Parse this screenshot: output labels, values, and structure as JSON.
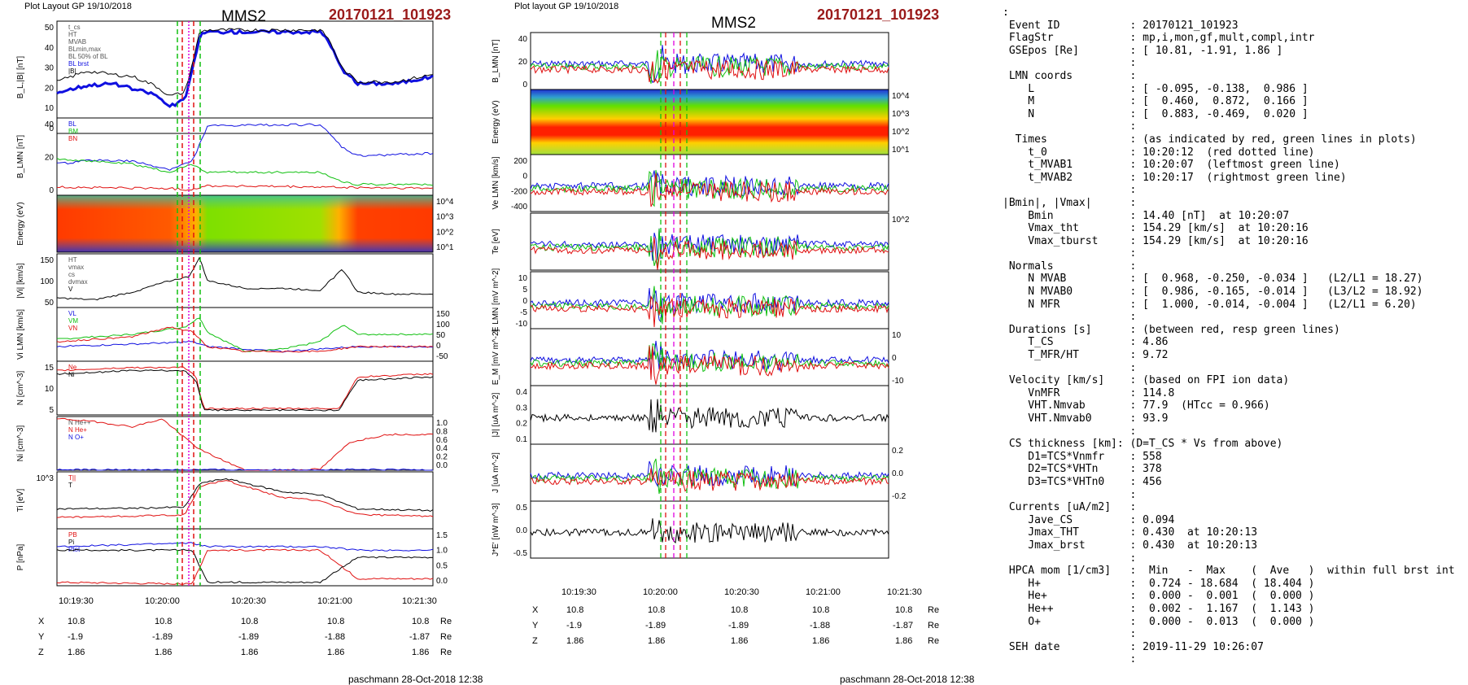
{
  "panel_left": {
    "header": "Plot Layout GP 19/10/2018",
    "spacecraft": "MMS2",
    "event": "20170121_101923",
    "footer": "paschmann 28-Oct-2018 12:38",
    "time_ticks": [
      "10:19:30",
      "10:20:00",
      "10:20:30",
      "10:21:00",
      "10:21:30"
    ],
    "positions": {
      "X": {
        "label": "X",
        "values": [
          "10.8",
          "10.8",
          "10.8",
          "10.8",
          "10.8"
        ],
        "unit": "Re"
      },
      "Y": {
        "label": "Y",
        "values": [
          "-1.9",
          "-1.89",
          "-1.89",
          "-1.88",
          "-1.87"
        ],
        "unit": "Re"
      },
      "Z": {
        "label": "Z",
        "values": [
          "1.86",
          "1.86",
          "1.86",
          "1.86",
          "1.86"
        ],
        "unit": "Re"
      }
    }
  },
  "panel_mid": {
    "header": "Plot layout GP 19/10/2018",
    "spacecraft": "MMS2",
    "event": "20170121_101923",
    "footer": "paschmann 28-Oct-2018 12:38",
    "time_ticks": [
      "10:19:30",
      "10:20:00",
      "10:20:30",
      "10:21:00",
      "10:21:30"
    ],
    "positions": {
      "X": {
        "label": "X",
        "values": [
          "10.8",
          "10.8",
          "10.8",
          "10.8",
          "10.8"
        ],
        "unit": "Re"
      },
      "Y": {
        "label": "Y",
        "values": [
          "-1.9",
          "-1.89",
          "-1.89",
          "-1.88",
          "-1.87"
        ],
        "unit": "Re"
      },
      "Z": {
        "label": "Z",
        "values": [
          "1.86",
          "1.86",
          "1.86",
          "1.86",
          "1.86"
        ],
        "unit": "Re"
      }
    }
  },
  "colors": {
    "red": "#e01010",
    "green": "#10c010",
    "blue": "#1010e0",
    "black": "#000000",
    "magenta": "#e000e0",
    "darkred": "#9a1a1a"
  },
  "text_lines": [
    ":",
    " Event ID           : 20170121_101923",
    " FlagStr            : mp,i,mon,gf,mult,compl,intr",
    " GSEpos [Re]        : [ 10.81, -1.91, 1.86 ]",
    "                    :",
    " LMN coords         :",
    "    L               : [ -0.095, -0.138,  0.986 ]",
    "    M               : [  0.460,  0.872,  0.166 ]",
    "    N               : [  0.883, -0.469,  0.020 ]",
    "                    :",
    "  Times             : (as indicated by red, green lines in plots)",
    "    t_0             : 10:20:12  (red dotted line)",
    "    t_MVAB1         : 10:20:07  (leftmost green line)",
    "    t_MVAB2         : 10:20:17  (rightmost green line)",
    "                    :",
    "|Bmin|, |Vmax|      :",
    "    Bmin            : 14.40 [nT]  at 10:20:07",
    "    Vmax_tht        : 154.29 [km/s]  at 10:20:16",
    "    Vmax_tburst     : 154.29 [km/s]  at 10:20:16",
    "                    :",
    " Normals            :",
    "    N MVAB          : [  0.968, -0.250, -0.034 ]   (L2/L1 = 18.27)",
    "    N MVAB0         : [  0.986, -0.165, -0.014 ]   (L3/L2 = 18.92)",
    "    N MFR           : [  1.000, -0.014, -0.004 ]   (L2/L1 = 6.20)",
    "                    :",
    " Durations [s]      : (between red, resp green lines)",
    "    T_CS            : 4.86",
    "    T_MFR/HT        : 9.72",
    "                    :",
    " Velocity [km/s]    : (based on FPI ion data)",
    "    VnMFR           : 114.8",
    "    VHT.Nmvab       : 77.9  (HTcc = 0.966)",
    "    VHT.Nmvab0      : 93.9",
    "                    :",
    " CS thickness [km]: (D=T_CS * Vs from above)",
    "    D1=TCS*Vnmfr    : 558",
    "    D2=TCS*VHTn     : 378",
    "    D3=TCS*VHTn0    : 456",
    "                    :",
    " Currents [uA/m2]   :",
    "    Jave_CS         : 0.094",
    "    Jmax_THT        : 0.430  at 10:20:13",
    "    Jmax_brst       : 0.430  at 10:20:13",
    "                    :",
    " HPCA mom [1/cm3]   :  Min   -  Max    (  Ave   )  within full brst int",
    "    H+              :  0.724 - 18.684  ( 18.404 )",
    "    He+             :  0.000 -  0.001  (  0.000 )",
    "    He++            :  0.002 -  1.167  (  1.143 )",
    "    O+              :  0.000 -  0.013  (  0.000 )",
    "                    :",
    " SEH date           : 2019-11-29 10:26:07",
    "                    :"
  ],
  "chart_data": [
    {
      "type": "line",
      "id": "left-b",
      "ylabel": "B_L,|B| [nT]",
      "yticks": [
        "50",
        "40",
        "30",
        "20",
        "10",
        "0"
      ],
      "ylim": [
        -5,
        58
      ],
      "legend": [
        "t_cs",
        "HT",
        "MVAB",
        "BLmin,max",
        "BL 50% of BL",
        "BL brst",
        "|B|"
      ],
      "series": [
        {
          "name": "BL brst",
          "color": "#1010e0",
          "x": [
            0,
            0.08,
            0.15,
            0.2,
            0.26,
            0.3,
            0.34,
            0.36,
            0.38,
            0.4,
            0.6,
            0.7,
            0.72,
            0.76,
            0.8,
            0.9,
            1.0
          ],
          "y": [
            18,
            22,
            23,
            20,
            17,
            10,
            14,
            30,
            50,
            52,
            52,
            52,
            48,
            30,
            23,
            23,
            27
          ]
        },
        {
          "name": "|B|",
          "color": "#000000",
          "x": [
            0,
            0.08,
            0.15,
            0.2,
            0.26,
            0.3,
            0.34,
            0.36,
            0.38,
            0.4,
            0.6,
            0.7,
            0.72,
            0.76,
            0.8,
            0.9,
            1.0
          ],
          "y": [
            24,
            30,
            28,
            27,
            22,
            16,
            18,
            34,
            52,
            53,
            53,
            53,
            49,
            31,
            24,
            24,
            28
          ]
        }
      ]
    },
    {
      "type": "line",
      "id": "left-blmn",
      "ylabel": "B_LMN [nT]",
      "yticks": [
        "40",
        "20",
        "0"
      ],
      "ylim": [
        -5,
        52
      ],
      "legend": [
        "BL",
        "BM",
        "BN"
      ],
      "series": [
        {
          "name": "BL",
          "color": "#1010e0",
          "x": [
            0,
            0.1,
            0.2,
            0.3,
            0.36,
            0.4,
            0.6,
            0.7,
            0.76,
            0.8,
            1.0
          ],
          "y": [
            18,
            21,
            20,
            14,
            20,
            46,
            47,
            47,
            30,
            24,
            26
          ]
        },
        {
          "name": "BM",
          "color": "#10c010",
          "x": [
            0,
            0.1,
            0.2,
            0.3,
            0.36,
            0.4,
            0.6,
            0.7,
            0.76,
            0.8,
            1.0
          ],
          "y": [
            22,
            20,
            18,
            12,
            18,
            12,
            12,
            12,
            5,
            3,
            3
          ]
        },
        {
          "name": "BN",
          "color": "#e01010",
          "x": [
            0,
            0.3,
            0.35,
            0.4,
            1.0
          ],
          "y": [
            1,
            0,
            -1,
            2,
            0
          ]
        }
      ]
    },
    {
      "type": "heatmap",
      "id": "left-spec",
      "ylabel": "Energy (eV)",
      "yticks": [
        "10^4",
        "10^3",
        "10^2",
        "10^1"
      ]
    },
    {
      "type": "line",
      "id": "left-vi",
      "ylabel": "|Vi| [km/s]",
      "yticks": [
        "150",
        "100",
        "50"
      ],
      "ylim": [
        20,
        160
      ],
      "legend": [
        "HT",
        "vmax",
        "cs",
        "dvmax",
        "V"
      ],
      "series": [
        {
          "name": "V",
          "color": "#000000",
          "x": [
            0,
            0.1,
            0.2,
            0.3,
            0.35,
            0.38,
            0.4,
            0.5,
            0.6,
            0.7,
            0.76,
            0.8,
            0.9,
            1.0
          ],
          "y": [
            45,
            40,
            60,
            90,
            100,
            150,
            90,
            70,
            70,
            65,
            120,
            60,
            55,
            55
          ]
        }
      ]
    },
    {
      "type": "line",
      "id": "left-vlmn",
      "ylabel": "Vi LMN [km/s]",
      "yticks": [
        "150",
        "100",
        "50",
        "0",
        "-50"
      ],
      "ylim": [
        -60,
        160
      ],
      "legend": [
        "VL",
        "VM",
        "VN"
      ],
      "series": [
        {
          "name": "VL",
          "color": "#1010e0",
          "x": [
            0,
            0.2,
            0.36,
            0.4,
            0.6,
            0.8,
            1.0
          ],
          "y": [
            0,
            10,
            20,
            0,
            -20,
            0,
            0
          ]
        },
        {
          "name": "VM",
          "color": "#10c010",
          "x": [
            0,
            0.2,
            0.34,
            0.38,
            0.4,
            0.5,
            0.6,
            0.7,
            0.76,
            0.8,
            1.0
          ],
          "y": [
            30,
            50,
            80,
            120,
            60,
            -20,
            -10,
            20,
            90,
            50,
            50
          ]
        },
        {
          "name": "VN",
          "color": "#e01010",
          "x": [
            0,
            0.2,
            0.3,
            0.36,
            0.4,
            0.5,
            0.7,
            0.8,
            1.0
          ],
          "y": [
            20,
            40,
            80,
            60,
            0,
            -20,
            -20,
            0,
            0
          ]
        }
      ]
    },
    {
      "type": "line",
      "id": "left-n",
      "ylabel": "N [cm^-3]",
      "yticks": [
        "15",
        "10",
        "5"
      ],
      "ylim": [
        0,
        17
      ],
      "legend": [
        "Ne",
        "Ni"
      ],
      "series": [
        {
          "name": "Ne",
          "color": "#e01010",
          "x": [
            0,
            0.2,
            0.34,
            0.37,
            0.39,
            0.6,
            0.75,
            0.8,
            1.0
          ],
          "y": [
            14,
            15,
            15,
            12,
            2,
            2,
            2,
            12,
            13
          ]
        },
        {
          "name": "Ni",
          "color": "#000000",
          "x": [
            0,
            0.2,
            0.34,
            0.37,
            0.39,
            0.6,
            0.75,
            0.8,
            1.0
          ],
          "y": [
            13,
            14,
            14,
            11,
            1.5,
            1.5,
            1.5,
            11,
            12
          ]
        }
      ]
    },
    {
      "type": "line",
      "id": "left-ni",
      "ylabel": "Ni [cm^-3]",
      "yticks": [
        "1.0",
        "0.8",
        "0.6",
        "0.4",
        "0.2",
        "0.0"
      ],
      "ylim": [
        0,
        1.05
      ],
      "legend": [
        "N He++",
        "N He+",
        "N O+"
      ],
      "series": [
        {
          "name": "N He+",
          "color": "#e01010",
          "x": [
            0.02,
            0.1,
            0.2,
            0.28,
            0.38,
            0.5,
            0.6,
            0.7,
            0.78,
            0.88
          ],
          "y": [
            1.0,
            0.95,
            0.85,
            1.0,
            0.4,
            0.0,
            0.0,
            0.02,
            0.55,
            0.7
          ]
        },
        {
          "name": "N O+",
          "color": "#1010e0",
          "x": [
            0,
            1.0
          ],
          "y": [
            0.01,
            0.01
          ]
        }
      ]
    },
    {
      "type": "line",
      "id": "left-ti",
      "ylabel": "Ti [eV]",
      "yticks": [
        "10^3"
      ],
      "ylim": [
        0,
        1
      ],
      "legend": [
        "T||",
        "T"
      ],
      "series": [
        {
          "name": "T||",
          "color": "#e01010",
          "x": [
            0,
            0.2,
            0.34,
            0.38,
            0.45,
            0.6,
            0.7,
            0.8,
            1.0
          ],
          "y": [
            0.2,
            0.22,
            0.25,
            0.75,
            0.85,
            0.55,
            0.5,
            0.25,
            0.22
          ]
        },
        {
          "name": "T",
          "color": "#000000",
          "x": [
            0,
            0.2,
            0.34,
            0.38,
            0.45,
            0.6,
            0.7,
            0.8,
            1.0
          ],
          "y": [
            0.35,
            0.36,
            0.38,
            0.8,
            0.88,
            0.65,
            0.6,
            0.35,
            0.32
          ]
        }
      ]
    },
    {
      "type": "line",
      "id": "left-p",
      "ylabel": "P [nPa]",
      "yticks": [
        "1.5",
        "1.0",
        "0.5",
        "0.0"
      ],
      "ylim": [
        0,
        1.6
      ],
      "legend": [
        "PB",
        "Pi",
        "Ptot"
      ],
      "series": [
        {
          "name": "PB",
          "color": "#e01010",
          "x": [
            0,
            0.36,
            0.4,
            0.7,
            0.8,
            1.0
          ],
          "y": [
            0.1,
            0.05,
            1.0,
            1.0,
            0.2,
            0.2
          ]
        },
        {
          "name": "Pi",
          "color": "#000000",
          "x": [
            0,
            0.36,
            0.4,
            0.7,
            0.8,
            1.0
          ],
          "y": [
            1.0,
            1.0,
            0.1,
            0.1,
            0.8,
            0.8
          ]
        },
        {
          "name": "Ptot",
          "color": "#1010e0",
          "x": [
            0,
            0.36,
            0.4,
            0.7,
            0.8,
            1.0
          ],
          "y": [
            1.1,
            1.2,
            1.1,
            1.1,
            1.0,
            1.0
          ]
        }
      ]
    }
  ]
}
